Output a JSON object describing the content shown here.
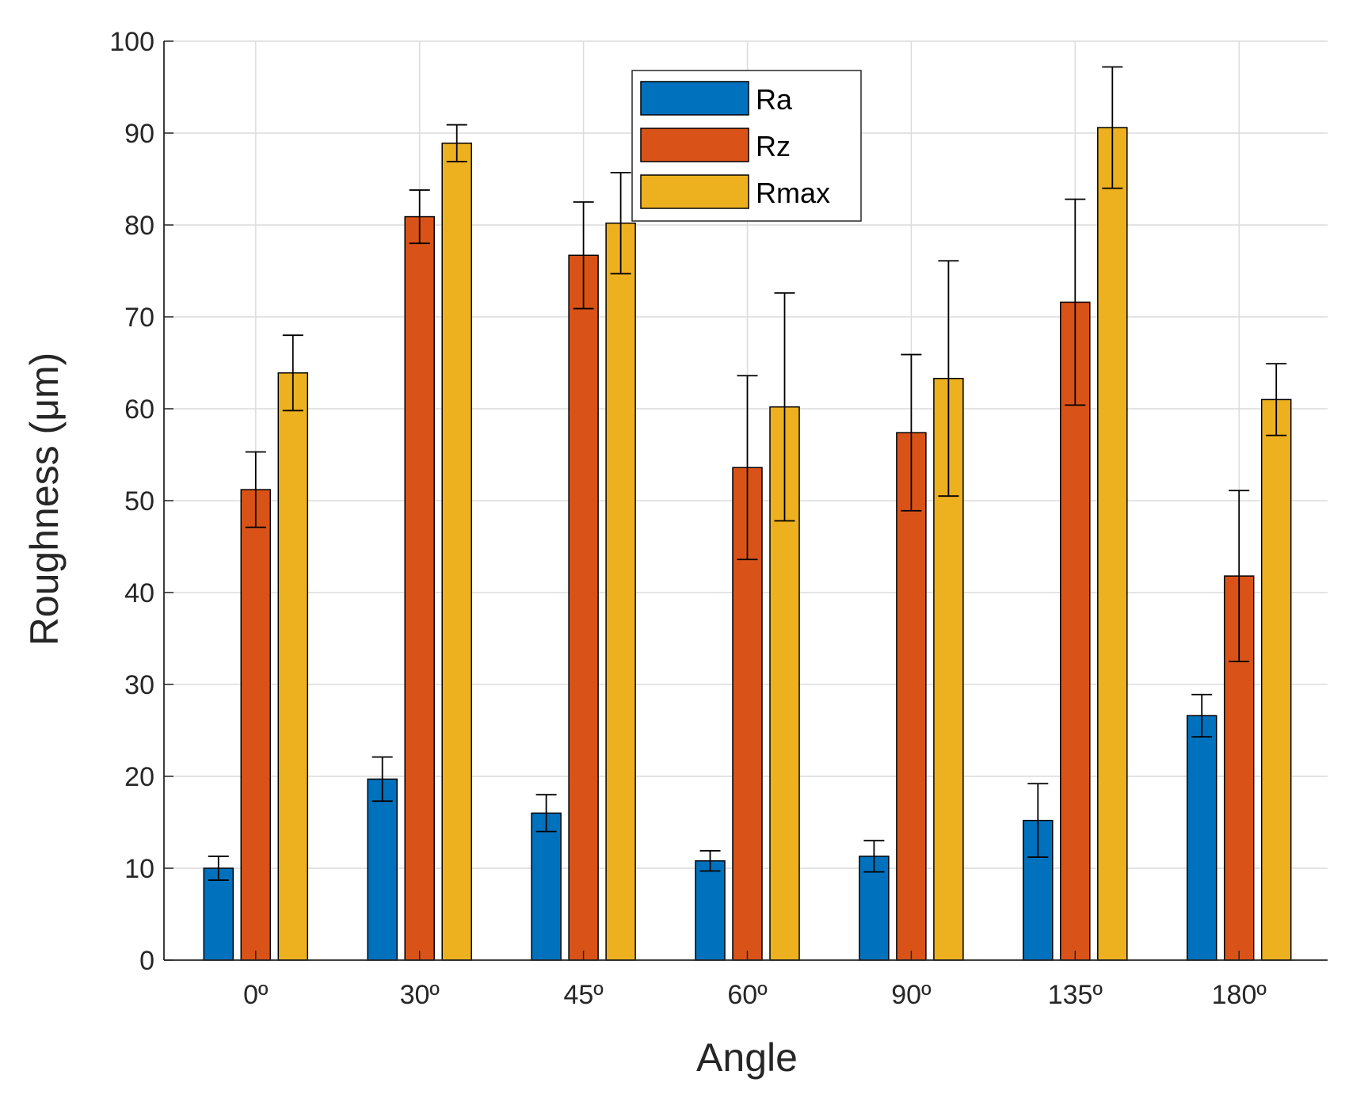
{
  "chart_data": {
    "type": "bar",
    "title": "",
    "xlabel": "Angle",
    "ylabel": "Roughness (μm)",
    "ylim": [
      0,
      100
    ],
    "yticks": [
      0,
      10,
      20,
      30,
      40,
      50,
      60,
      70,
      80,
      90,
      100
    ],
    "grid": true,
    "legend_position": "top-center",
    "categories": [
      "0º",
      "30º",
      "45º",
      "60º",
      "90º",
      "135º",
      "180º"
    ],
    "series": [
      {
        "name": "Ra",
        "color": "#0072BD",
        "values": [
          10.0,
          19.7,
          16.0,
          10.8,
          11.3,
          15.2,
          26.6
        ],
        "errors": [
          1.3,
          2.4,
          2.0,
          1.1,
          1.7,
          4.0,
          2.3
        ]
      },
      {
        "name": "Rz",
        "color": "#D95319",
        "values": [
          51.2,
          80.9,
          76.7,
          53.6,
          57.4,
          71.6,
          41.8
        ],
        "errors": [
          4.1,
          2.9,
          5.8,
          10.0,
          8.5,
          11.2,
          9.3
        ]
      },
      {
        "name": "Rmax",
        "color": "#EDB120",
        "values": [
          63.9,
          88.9,
          80.2,
          60.2,
          63.3,
          90.6,
          61.0
        ],
        "errors": [
          4.1,
          2.0,
          5.5,
          12.4,
          12.8,
          6.6,
          3.9
        ]
      }
    ]
  }
}
